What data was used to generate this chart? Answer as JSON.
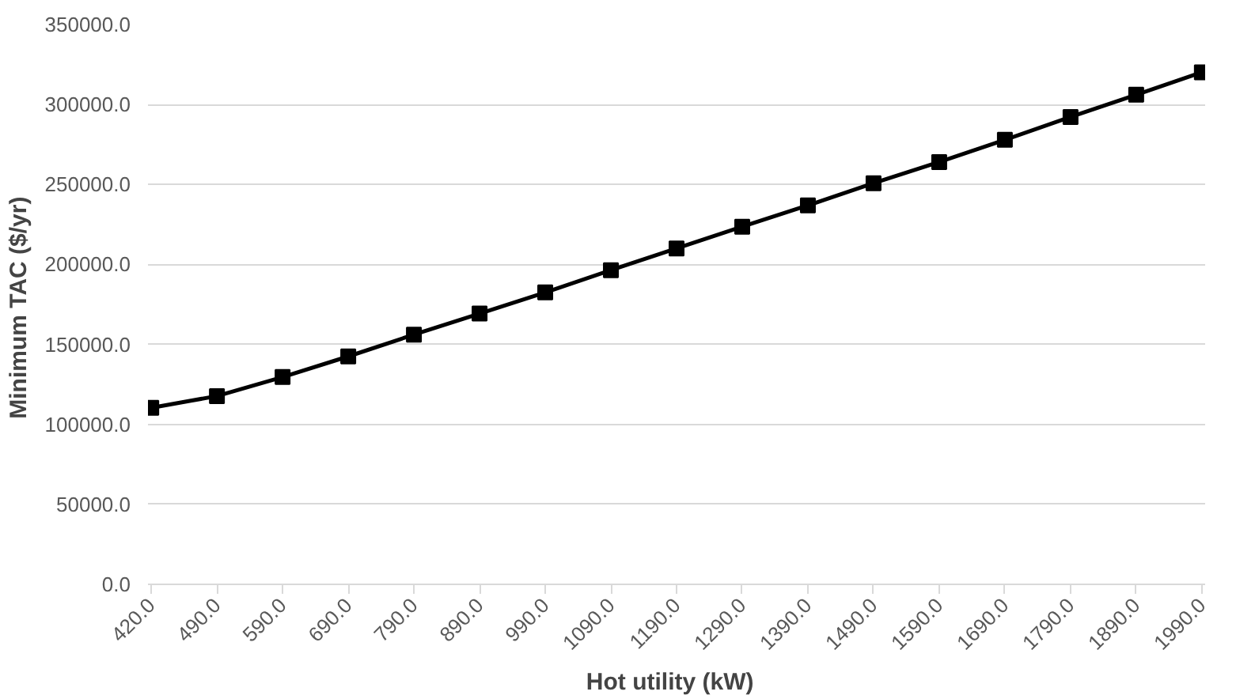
{
  "chart_data": {
    "type": "line",
    "xlabel": "Hot utility   (kW)",
    "ylabel": "Minimum TAC  ($/yr)",
    "categories": [
      "420.0",
      "490.0",
      "590.0",
      "690.0",
      "790.0",
      "890.0",
      "990.0",
      "1090.0",
      "1190.0",
      "1290.0",
      "1390.0",
      "1490.0",
      "1590.0",
      "1690.0",
      "1790.0",
      "1890.0",
      "1990.0"
    ],
    "series": [
      {
        "color": "#000000",
        "values": [
          110400,
          117700,
          129600,
          142500,
          156100,
          169300,
          182500,
          196400,
          210000,
          223600,
          236900,
          250800,
          264000,
          277900,
          292200,
          306100,
          320100
        ]
      }
    ],
    "ylim": [
      0,
      350000
    ],
    "yticks": [
      {
        "value": 0,
        "label": "0.0"
      },
      {
        "value": 50000,
        "label": "50000.0"
      },
      {
        "value": 100000,
        "label": "100000.0"
      },
      {
        "value": 150000,
        "label": "150000.0"
      },
      {
        "value": 200000,
        "label": "200000.0"
      },
      {
        "value": 250000,
        "label": "250000.0"
      },
      {
        "value": 300000,
        "label": "300000.0"
      },
      {
        "value": 350000,
        "label": "350000.0"
      }
    ],
    "grid": "y",
    "marker": "square",
    "line_style": "solid"
  }
}
